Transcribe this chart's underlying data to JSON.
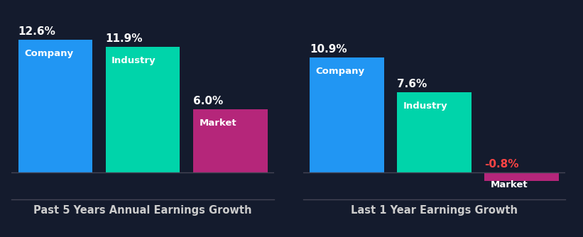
{
  "background_color": "#141b2d",
  "chart1": {
    "title": "Past 5 Years Annual Earnings Growth",
    "categories": [
      "Company",
      "Industry",
      "Market"
    ],
    "values": [
      12.6,
      11.9,
      6.0
    ],
    "colors": [
      "#2196f3",
      "#00d4aa",
      "#b5267a"
    ],
    "value_labels": [
      "12.6%",
      "11.9%",
      "6.0%"
    ],
    "value_label_colors": [
      "#ffffff",
      "#ffffff",
      "#ffffff"
    ]
  },
  "chart2": {
    "title": "Last 1 Year Earnings Growth",
    "categories": [
      "Company",
      "Industry",
      "Market"
    ],
    "values": [
      10.9,
      7.6,
      -0.8
    ],
    "colors": [
      "#2196f3",
      "#00d4aa",
      "#b5267a"
    ],
    "value_labels": [
      "10.9%",
      "7.6%",
      "-0.8%"
    ],
    "value_label_colors": [
      "#ffffff",
      "#ffffff",
      "#ff4444"
    ]
  },
  "bar_width": 0.85,
  "text_color": "#ffffff",
  "title_color": "#cccccc",
  "label_fontsize": 9.5,
  "value_fontsize": 11,
  "title_fontsize": 10.5,
  "ymax": 15.0,
  "ymin": -2.5
}
